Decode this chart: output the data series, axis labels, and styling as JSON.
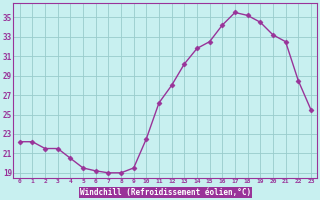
{
  "x": [
    0,
    1,
    2,
    3,
    4,
    5,
    6,
    7,
    8,
    9,
    10,
    11,
    12,
    13,
    14,
    15,
    16,
    17,
    18,
    19,
    20,
    21,
    22,
    23
  ],
  "y": [
    22.2,
    22.2,
    21.5,
    21.5,
    20.5,
    19.5,
    19.2,
    19.0,
    19.0,
    19.5,
    22.5,
    26.2,
    28.0,
    30.2,
    31.8,
    32.5,
    34.2,
    35.5,
    35.2,
    34.5,
    33.2,
    32.5,
    28.5,
    25.5
  ],
  "line_color": "#993399",
  "marker": "D",
  "marker_size": 2.5,
  "bg_color": "#c8f0f0",
  "grid_color": "#99cccc",
  "plot_bg": "#c8f0f0",
  "xlabel": "Windchill (Refroidissement éolien,°C)",
  "xlabel_bg": "#993399",
  "xlabel_color": "#ffffff",
  "ylabel": "",
  "ylim": [
    18.5,
    36.5
  ],
  "xlim": [
    -0.5,
    23.5
  ],
  "yticks": [
    19,
    21,
    23,
    25,
    27,
    29,
    31,
    33,
    35
  ],
  "xticks": [
    0,
    1,
    2,
    3,
    4,
    5,
    6,
    7,
    8,
    9,
    10,
    11,
    12,
    13,
    14,
    15,
    16,
    17,
    18,
    19,
    20,
    21,
    22,
    23
  ],
  "tick_color": "#993399",
  "label_color": "#993399",
  "spine_color": "#993399",
  "linewidth": 1.0
}
